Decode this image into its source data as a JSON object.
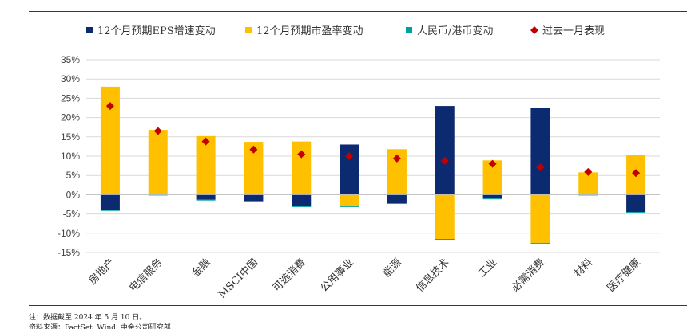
{
  "chart_data": {
    "type": "bar",
    "title": "",
    "xlabel": "",
    "ylabel": "",
    "ylim": [
      -15,
      35
    ],
    "yticks": [
      35,
      30,
      25,
      20,
      15,
      10,
      5,
      0,
      -5,
      -10,
      -15
    ],
    "ytick_labels": [
      "35%",
      "30%",
      "25%",
      "20%",
      "15%",
      "10%",
      "5%",
      "0%",
      "-5%",
      "-10%",
      "-15%"
    ],
    "grid": true,
    "legend_position": "top",
    "categories": [
      "房地产",
      "电信服务",
      "金融",
      "MSCI中国",
      "可选消费",
      "公用事业",
      "能源",
      "信息技术",
      "工业",
      "必需消费",
      "材料",
      "医疗健康"
    ],
    "series": [
      {
        "name": "12个月预期EPS增速变动",
        "type": "stacked-bar",
        "color": "#0b2a6f",
        "values": [
          -4.0,
          0.0,
          -1.3,
          -1.6,
          -3.0,
          13.0,
          -2.2,
          23.0,
          -1.0,
          22.5,
          0.0,
          -4.5
        ]
      },
      {
        "name": "12个月预期市盈率变动",
        "type": "stacked-bar",
        "color": "#ffc000",
        "values": [
          28.0,
          16.8,
          15.2,
          13.7,
          13.8,
          -3.0,
          11.8,
          -11.5,
          8.9,
          -12.5,
          5.8,
          10.4
        ]
      },
      {
        "name": "人民币/港币变动",
        "type": "stacked-bar",
        "color": "#00a19a",
        "values": [
          -0.2,
          -0.2,
          -0.2,
          -0.2,
          -0.2,
          -0.2,
          -0.2,
          -0.2,
          -0.2,
          -0.2,
          -0.2,
          -0.2
        ]
      },
      {
        "name": "过去一月表现",
        "type": "marker",
        "color": "#c00000",
        "values": [
          23.0,
          16.5,
          13.8,
          11.7,
          10.5,
          10.0,
          9.4,
          8.8,
          8.0,
          7.1,
          5.9,
          5.6
        ]
      }
    ]
  },
  "footnote": "注：数据截至 2024 年 5 月 10 日。",
  "footnote2": "资料来源：FactSet, Wind, 中金公司研究部"
}
